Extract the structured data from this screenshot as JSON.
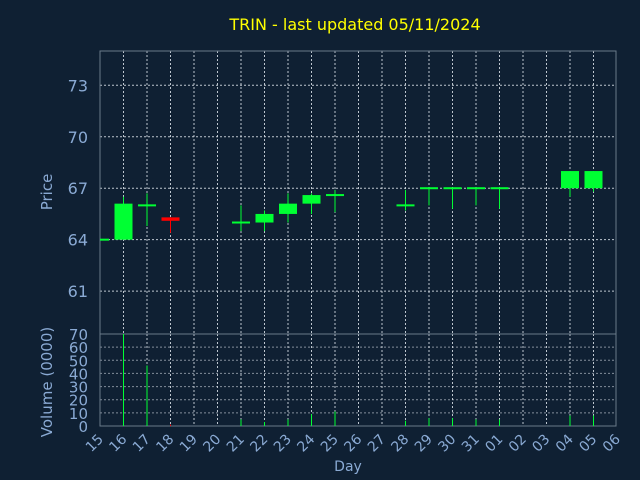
{
  "chart_data": {
    "type": "candlestick",
    "title": "TRIN - last updated 05/11/2024",
    "xlabel": "Day",
    "price_panel": {
      "ylabel": "Price",
      "ylim": [
        58.5,
        75
      ],
      "yticks": [
        61,
        64,
        67,
        70,
        73
      ]
    },
    "volume_panel": {
      "ylabel": "Volume (0000)",
      "ylim": [
        0,
        70
      ],
      "yticks": [
        0,
        10,
        20,
        30,
        40,
        50,
        60,
        70
      ]
    },
    "x_tick_labels": [
      "15",
      "16",
      "17",
      "18",
      "19",
      "20",
      "21",
      "22",
      "23",
      "24",
      "25",
      "26",
      "27",
      "28",
      "29",
      "30",
      "31",
      "01",
      "02",
      "03",
      "04",
      "05",
      "06"
    ],
    "candles": [
      {
        "day": "15",
        "open": 64.0,
        "high": 64.0,
        "low": 64.0,
        "close": 64.0,
        "volume": 0
      },
      {
        "day": "16",
        "open": 64.0,
        "high": 66.5,
        "low": 64.0,
        "close": 66.1,
        "volume": 70
      },
      {
        "day": "17",
        "open": 66.0,
        "high": 66.7,
        "low": 64.8,
        "close": 66.0,
        "volume": 46
      },
      {
        "day": "18",
        "open": 65.3,
        "high": 65.3,
        "low": 64.4,
        "close": 65.1,
        "volume": 1
      },
      {
        "day": "21",
        "open": 65.0,
        "high": 66.0,
        "low": 64.5,
        "close": 65.0,
        "volume": 5
      },
      {
        "day": "22",
        "open": 65.0,
        "high": 65.7,
        "low": 64.5,
        "close": 65.5,
        "volume": 3
      },
      {
        "day": "23",
        "open": 65.5,
        "high": 66.7,
        "low": 65.0,
        "close": 66.1,
        "volume": 5
      },
      {
        "day": "24",
        "open": 66.1,
        "high": 66.7,
        "low": 65.5,
        "close": 66.6,
        "volume": 9
      },
      {
        "day": "25",
        "open": 66.5,
        "high": 66.9,
        "low": 65.6,
        "close": 66.6,
        "volume": 11
      },
      {
        "day": "28",
        "open": 66.0,
        "high": 66.9,
        "low": 65.7,
        "close": 66.0,
        "volume": 4
      },
      {
        "day": "29",
        "open": 67.0,
        "high": 67.0,
        "low": 66.0,
        "close": 67.0,
        "volume": 6
      },
      {
        "day": "30",
        "open": 67.0,
        "high": 67.0,
        "low": 65.8,
        "close": 67.0,
        "volume": 6
      },
      {
        "day": "31",
        "open": 67.0,
        "high": 67.0,
        "low": 66.0,
        "close": 67.0,
        "volume": 5
      },
      {
        "day": "01",
        "open": 67.0,
        "high": 67.0,
        "low": 65.8,
        "close": 67.0,
        "volume": 5
      },
      {
        "day": "04",
        "open": 67.0,
        "high": 68.0,
        "low": 66.5,
        "close": 68.0,
        "volume": 8
      },
      {
        "day": "05",
        "open": 67.0,
        "high": 68.0,
        "low": 66.8,
        "close": 68.0,
        "volume": 8
      }
    ],
    "grid": true,
    "colors": {
      "background": "#0f2033",
      "up": "#00ff33",
      "down": "#ff0000",
      "axis": "#8aaad4",
      "title": "#ffff00",
      "grid": "#d0d8e0",
      "frame": "#6a7a8a"
    }
  }
}
